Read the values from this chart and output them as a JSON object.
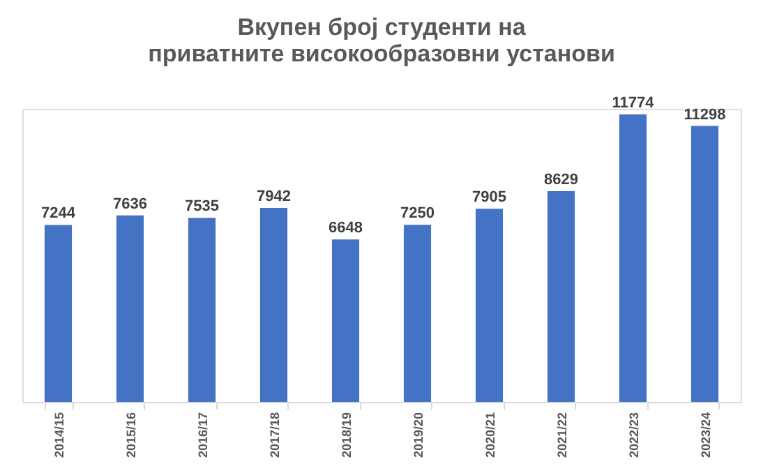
{
  "chart_data": {
    "type": "bar",
    "title": "Вкупен број студенти на приватните високообразовни установи",
    "categories": [
      "2014/15",
      "2015/16",
      "2016/17",
      "2017/18",
      "2018/19",
      "2019/20",
      "2020/21",
      "2021/22",
      "2022/23",
      "2023/24"
    ],
    "values": [
      7244,
      7636,
      7535,
      7942,
      6648,
      7250,
      7905,
      8629,
      11774,
      11298
    ],
    "color": "#4472c4",
    "data_labels": true,
    "grid": false,
    "tick_labels": "x"
  }
}
